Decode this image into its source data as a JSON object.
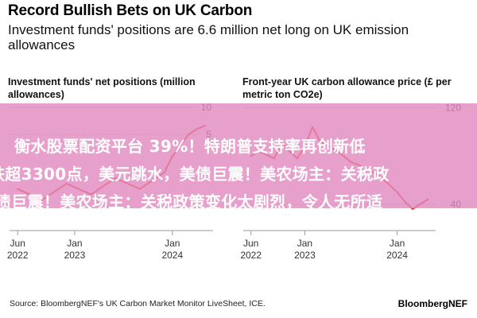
{
  "header": {
    "title": "Record Bullish Bets on UK Carbon",
    "subtitle": "Investment funds' positions are 6.6 million net long on UK emission allowances"
  },
  "overlay": {
    "line1": "衡水股票配资平台 39%！特朗普支持率再创新低",
    "line2": "跌超3300点，美元跳水，美债巨震！美农场主：关税政",
    "line3": "债巨震！美农场主：关税政策变化太剧烈，令人无所适"
  },
  "footer": {
    "source": "Source: BloombergNEF's UK Carbon Market Monitor LiveSheet, ICE.",
    "brand": "BloombergNEF"
  },
  "colors": {
    "line": "#e8401c",
    "overlay": "#e187be",
    "grid": "#cccccc"
  },
  "chart_data": [
    {
      "type": "line",
      "title": "Investment funds' net positions (million allowances)",
      "x_tick_labels": [
        [
          "Jun",
          "2022"
        ],
        [
          "Jan",
          "2023"
        ],
        [
          "Jan",
          "2024"
        ]
      ],
      "y_tick_labels": [
        "10",
        "5"
      ],
      "ylim": [
        -10,
        11
      ],
      "x": [
        "2022-06",
        "2022-09",
        "2022-12",
        "2023-03",
        "2023-06",
        "2023-09",
        "2023-12",
        "2024-01",
        "2024-02",
        "2024-03",
        "2024-04",
        "2024-05"
      ],
      "values": [
        -5,
        -7,
        -4,
        -6,
        -3,
        -5,
        -2,
        1,
        3,
        5,
        6,
        6.6
      ],
      "grid": true
    },
    {
      "type": "line",
      "title": "Front-year UK carbon allowance price (£ per metric ton CO2e)",
      "x_tick_labels": [
        [
          "Jun",
          "2022"
        ],
        [
          "Jan",
          "2023"
        ],
        [
          "Jan",
          "2024"
        ]
      ],
      "y_tick_labels": [
        "120",
        "40"
      ],
      "ylim": [
        30,
        125
      ],
      "x": [
        "2022-06",
        "2022-07",
        "2022-09",
        "2022-10",
        "2022-12",
        "2023-01",
        "2023-02",
        "2023-03",
        "2023-05",
        "2023-07",
        "2023-09",
        "2023-11",
        "2024-01",
        "2024-02",
        "2024-03",
        "2024-04",
        "2024-05"
      ],
      "values": [
        80,
        84,
        78,
        90,
        78,
        88,
        104,
        92,
        85,
        75,
        70,
        62,
        50,
        42,
        36,
        40,
        44
      ],
      "grid": true
    }
  ]
}
